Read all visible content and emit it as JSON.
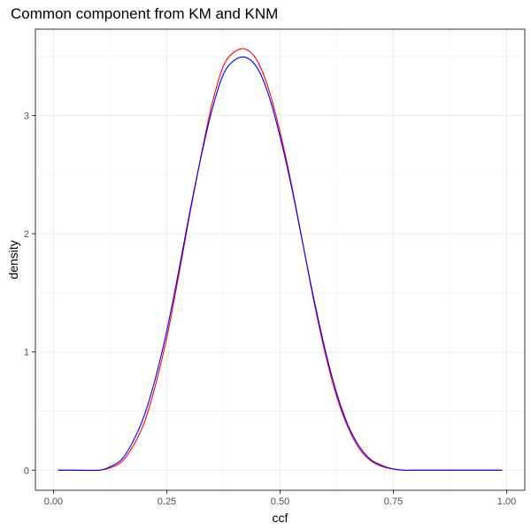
{
  "chart_data": {
    "type": "line",
    "title": "Common component from KM and KNM",
    "xlabel": "ccf",
    "ylabel": "density",
    "xlim": [
      -0.04,
      1.04
    ],
    "ylim": [
      -0.17,
      3.73
    ],
    "x_ticks": [
      0.0,
      0.25,
      0.5,
      0.75,
      1.0
    ],
    "x_tick_labels": [
      "0.00",
      "0.25",
      "0.50",
      "0.75",
      "1.00"
    ],
    "y_ticks": [
      0,
      1,
      2,
      3
    ],
    "y_tick_labels": [
      "0",
      "1",
      "2",
      "3"
    ],
    "grid": true,
    "legend": "none",
    "series": [
      {
        "color": "#ff0000",
        "x": [
          0.01,
          0.05,
          0.1,
          0.125,
          0.15,
          0.175,
          0.2,
          0.225,
          0.25,
          0.275,
          0.3,
          0.325,
          0.35,
          0.375,
          0.4,
          0.425,
          0.45,
          0.475,
          0.5,
          0.525,
          0.55,
          0.575,
          0.6,
          0.625,
          0.65,
          0.675,
          0.7,
          0.725,
          0.75,
          0.775,
          0.8,
          0.85,
          0.9,
          0.95,
          0.99
        ],
        "y": [
          0.0,
          0.0,
          0.0,
          0.02,
          0.07,
          0.2,
          0.4,
          0.72,
          1.12,
          1.62,
          2.15,
          2.65,
          3.1,
          3.42,
          3.54,
          3.56,
          3.46,
          3.22,
          2.86,
          2.42,
          1.92,
          1.42,
          0.98,
          0.62,
          0.36,
          0.18,
          0.08,
          0.03,
          0.01,
          0.0,
          0.0,
          0.0,
          0.0,
          0.0,
          0.0
        ]
      },
      {
        "color": "#0000ff",
        "x": [
          0.01,
          0.05,
          0.1,
          0.125,
          0.15,
          0.175,
          0.2,
          0.225,
          0.25,
          0.275,
          0.3,
          0.325,
          0.35,
          0.375,
          0.4,
          0.425,
          0.45,
          0.475,
          0.5,
          0.525,
          0.55,
          0.575,
          0.6,
          0.625,
          0.65,
          0.675,
          0.7,
          0.725,
          0.75,
          0.775,
          0.8,
          0.85,
          0.9,
          0.95,
          0.99
        ],
        "y": [
          0.0,
          0.0,
          0.0,
          0.03,
          0.09,
          0.24,
          0.46,
          0.78,
          1.18,
          1.66,
          2.17,
          2.64,
          3.05,
          3.35,
          3.47,
          3.49,
          3.4,
          3.17,
          2.82,
          2.4,
          1.92,
          1.44,
          1.01,
          0.65,
          0.38,
          0.2,
          0.09,
          0.04,
          0.01,
          0.0,
          0.0,
          0.0,
          0.0,
          0.0,
          0.0
        ]
      }
    ]
  },
  "colors": {
    "background": "#ffffff",
    "panel_border": "#333333",
    "grid_major": "#ebebeb",
    "grid_minor": "#f4f4f4",
    "tick_label": "#4d4d4d"
  }
}
